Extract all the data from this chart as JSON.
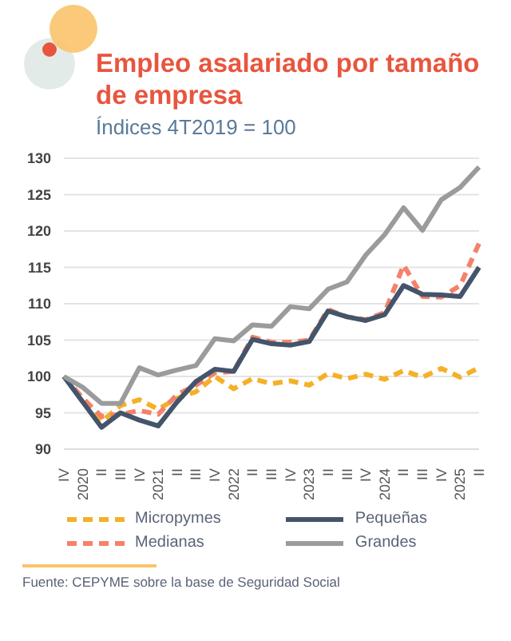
{
  "chart_data": {
    "type": "line",
    "title": "Empleo asalariado por tamaño de empresa",
    "subtitle": "Índices 4T2019 = 100",
    "categories": [
      "IV",
      "2020",
      "II",
      "III",
      "IV",
      "2021",
      "II",
      "III",
      "IV",
      "2022",
      "II",
      "III",
      "IV",
      "2023",
      "II",
      "III",
      "IV",
      "2024",
      "II",
      "III",
      "IV",
      "2025",
      "II"
    ],
    "series": [
      {
        "name": "Micropymes",
        "color": "#f5b027",
        "line_style": "dashed",
        "values": [
          100,
          97,
          93.8,
          96,
          96.8,
          95.5,
          97,
          97.9,
          100,
          98.3,
          99.7,
          99,
          99.4,
          98.8,
          100.4,
          99.7,
          100.3,
          99.6,
          100.8,
          99.9,
          101.1,
          99.9,
          101.2
        ]
      },
      {
        "name": "Medianas",
        "color": "#f4826a",
        "line_style": "dashed",
        "values": [
          100,
          97,
          94.5,
          94.8,
          95.3,
          94.8,
          97.5,
          98.8,
          100.5,
          100.7,
          105.4,
          104.7,
          104.7,
          105,
          109.2,
          108.2,
          107.8,
          108.8,
          115.3,
          111,
          110.9,
          112.5,
          118.3
        ]
      },
      {
        "name": "Pequeñas",
        "color": "#44546a",
        "line_style": "solid",
        "values": [
          100,
          96.5,
          93,
          95,
          94,
          93.2,
          96.5,
          99.3,
          101,
          100.7,
          105.1,
          104.5,
          104.3,
          104.8,
          109,
          108.2,
          107.7,
          108.5,
          112.5,
          111.3,
          111.2,
          111,
          115
        ]
      },
      {
        "name": "Grandes",
        "color": "#9b9b9b",
        "line_style": "solid",
        "values": [
          100,
          98.5,
          96.3,
          96.3,
          101.2,
          100.2,
          100.9,
          101.5,
          105.2,
          104.9,
          107.1,
          106.9,
          109.6,
          109.3,
          112,
          113,
          116.7,
          119.5,
          123.2,
          120.1,
          124.3,
          126,
          128.8
        ]
      }
    ],
    "ylim": [
      90,
      130
    ],
    "yticks": [
      90,
      95,
      100,
      105,
      110,
      115,
      120,
      125,
      130
    ],
    "grid": "y",
    "legend": "bottom",
    "marker": "none",
    "annotations": [
      "Fuente: CEPYME sobre la base de Seguridad Social"
    ]
  }
}
